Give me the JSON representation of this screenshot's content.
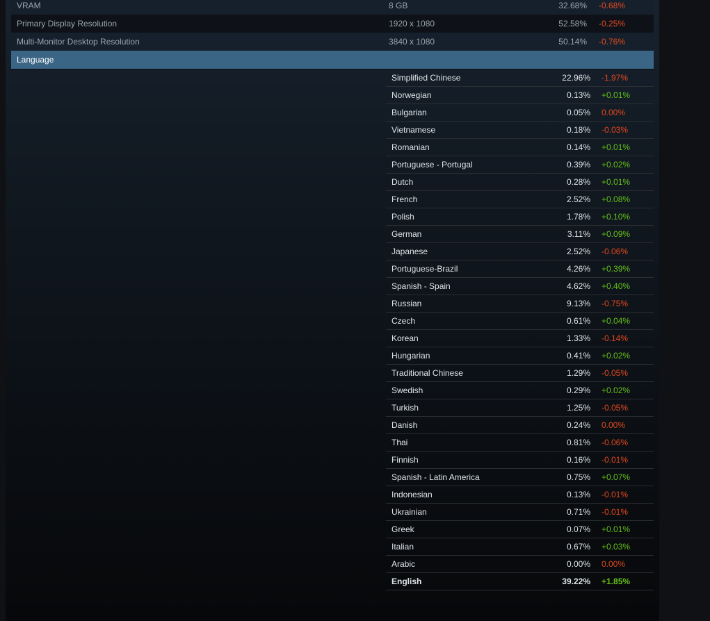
{
  "colors": {
    "positive": "#66c01a",
    "negative": "#e0481f",
    "header": "#3b6585"
  },
  "top_rows": [
    {
      "name": "VRAM",
      "value": "8 GB",
      "percent": "32.68%",
      "change": "-0.68%"
    },
    {
      "name": "Primary Display Resolution",
      "value": "1920 x 1080",
      "percent": "52.58%",
      "change": "-0.25%"
    },
    {
      "name": "Multi-Monitor Desktop Resolution",
      "value": "3840 x 1080",
      "percent": "50.14%",
      "change": "-0.76%"
    }
  ],
  "section": {
    "title": "Language"
  },
  "languages": [
    {
      "name": "Simplified Chinese",
      "percent": "22.96%",
      "change": "-1.97%"
    },
    {
      "name": "Norwegian",
      "percent": "0.13%",
      "change": "+0.01%"
    },
    {
      "name": "Bulgarian",
      "percent": "0.05%",
      "change": "0.00%"
    },
    {
      "name": "Vietnamese",
      "percent": "0.18%",
      "change": "-0.03%"
    },
    {
      "name": "Romanian",
      "percent": "0.14%",
      "change": "+0.01%"
    },
    {
      "name": "Portuguese - Portugal",
      "percent": "0.39%",
      "change": "+0.02%"
    },
    {
      "name": "Dutch",
      "percent": "0.28%",
      "change": "+0.01%"
    },
    {
      "name": "French",
      "percent": "2.52%",
      "change": "+0.08%"
    },
    {
      "name": "Polish",
      "percent": "1.78%",
      "change": "+0.10%"
    },
    {
      "name": "German",
      "percent": "3.11%",
      "change": "+0.09%"
    },
    {
      "name": "Japanese",
      "percent": "2.52%",
      "change": "-0.06%"
    },
    {
      "name": "Portuguese-Brazil",
      "percent": "4.26%",
      "change": "+0.39%"
    },
    {
      "name": "Spanish - Spain",
      "percent": "4.62%",
      "change": "+0.40%"
    },
    {
      "name": "Russian",
      "percent": "9.13%",
      "change": "-0.75%"
    },
    {
      "name": "Czech",
      "percent": "0.61%",
      "change": "+0.04%"
    },
    {
      "name": "Korean",
      "percent": "1.33%",
      "change": "-0.14%"
    },
    {
      "name": "Hungarian",
      "percent": "0.41%",
      "change": "+0.02%"
    },
    {
      "name": "Traditional Chinese",
      "percent": "1.29%",
      "change": "-0.05%"
    },
    {
      "name": "Swedish",
      "percent": "0.29%",
      "change": "+0.02%"
    },
    {
      "name": "Turkish",
      "percent": "1.25%",
      "change": "-0.05%"
    },
    {
      "name": "Danish",
      "percent": "0.24%",
      "change": "0.00%"
    },
    {
      "name": "Thai",
      "percent": "0.81%",
      "change": "-0.06%"
    },
    {
      "name": "Finnish",
      "percent": "0.16%",
      "change": "-0.01%"
    },
    {
      "name": "Spanish - Latin America",
      "percent": "0.75%",
      "change": "+0.07%"
    },
    {
      "name": "Indonesian",
      "percent": "0.13%",
      "change": "-0.01%"
    },
    {
      "name": "Ukrainian",
      "percent": "0.71%",
      "change": "-0.01%"
    },
    {
      "name": "Greek",
      "percent": "0.07%",
      "change": "+0.01%"
    },
    {
      "name": "Italian",
      "percent": "0.67%",
      "change": "+0.03%"
    },
    {
      "name": "Arabic",
      "percent": "0.00%",
      "change": "0.00%"
    },
    {
      "name": "English",
      "percent": "39.22%",
      "change": "+1.85%",
      "highlight": true
    }
  ]
}
